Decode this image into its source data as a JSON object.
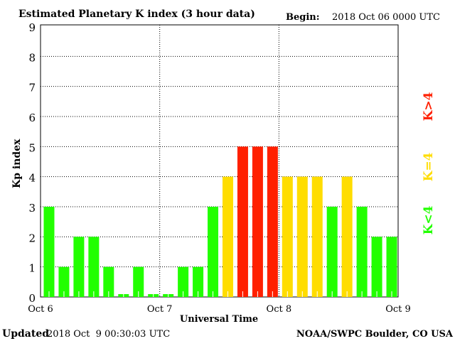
{
  "chart_data": {
    "type": "bar",
    "title": "Estimated Planetary K index (3 hour data)",
    "begin_label": "Begin:",
    "begin_value": "2018 Oct 06 0000 UTC",
    "xlabel": "Universal Time",
    "ylabel": "Kp index",
    "ylim": [
      0,
      9
    ],
    "yticks": [
      "0",
      "1",
      "2",
      "3",
      "4",
      "5",
      "6",
      "7",
      "8",
      "9"
    ],
    "xticks": [
      "Oct 6",
      "Oct 7",
      "Oct 8",
      "Oct 9"
    ],
    "grid": true,
    "values": [
      3,
      1,
      2,
      2,
      1,
      0,
      1,
      0,
      0,
      1,
      1,
      3,
      4,
      5,
      5,
      5,
      4,
      4,
      4,
      3,
      4,
      3,
      2,
      2
    ],
    "legend": [
      {
        "label": "K>4",
        "color": "#ff2000"
      },
      {
        "label": "K=4",
        "color": "#ffdd00"
      },
      {
        "label": "K<4",
        "color": "#22ff00"
      }
    ],
    "legend_placement": "right"
  },
  "footer": {
    "updated_label": "Updated",
    "updated_value": "2018 Oct  9 00:30:03 UTC",
    "source": "NOAA/SWPC Boulder, CO USA"
  }
}
